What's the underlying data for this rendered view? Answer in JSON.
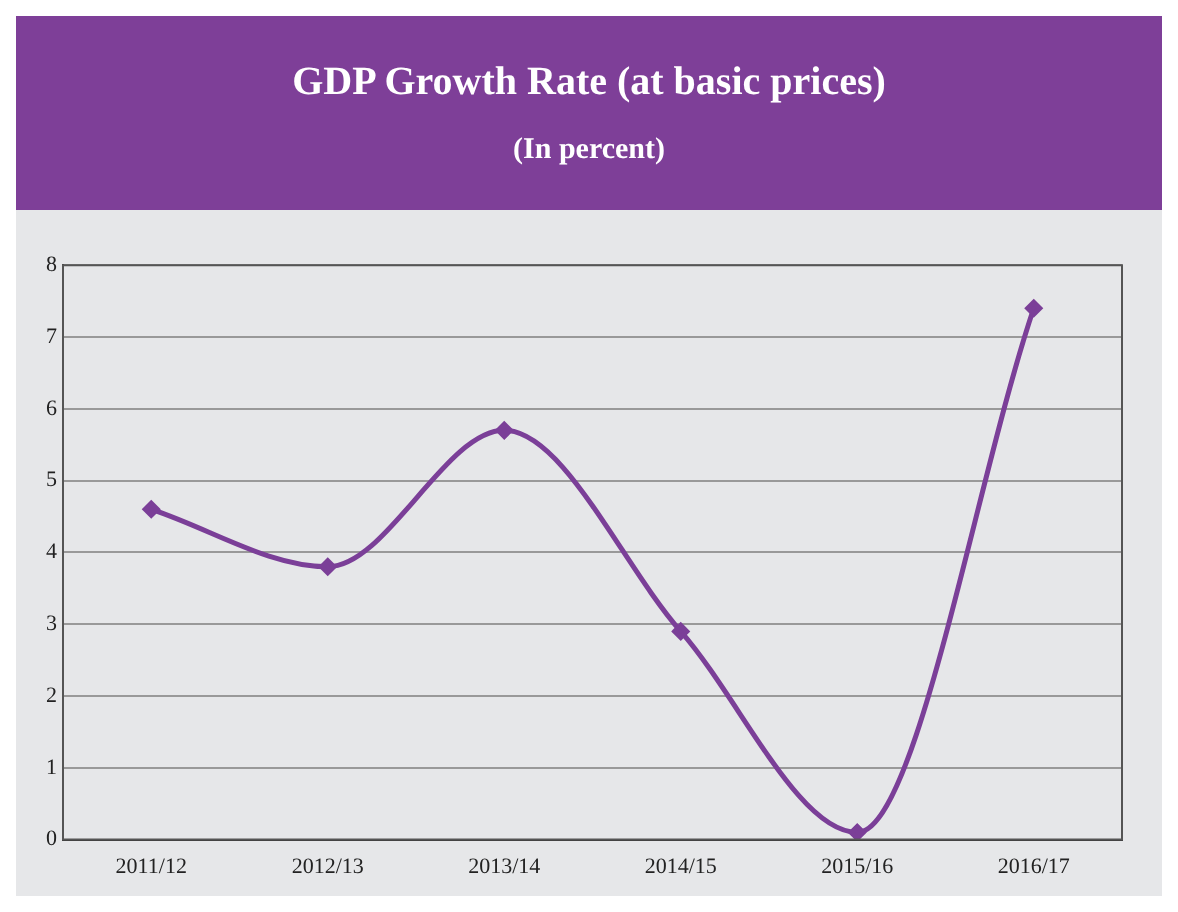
{
  "chart_data": {
    "type": "line",
    "title": "GDP Growth Rate (at basic prices)",
    "subtitle": "(In percent)",
    "categories": [
      "2011/12",
      "2012/13",
      "2013/14",
      "2014/15",
      "2015/16",
      "2016/17"
    ],
    "series": [
      {
        "color": "#7b3f98",
        "values": [
          4.6,
          3.8,
          5.7,
          2.9,
          0.1,
          7.4
        ]
      }
    ],
    "ylim": [
      0,
      8
    ],
    "yticks": [
      0,
      1,
      2,
      3,
      4,
      5,
      6,
      7,
      8
    ],
    "grid": "y",
    "marker": "diamond",
    "legend": false
  }
}
